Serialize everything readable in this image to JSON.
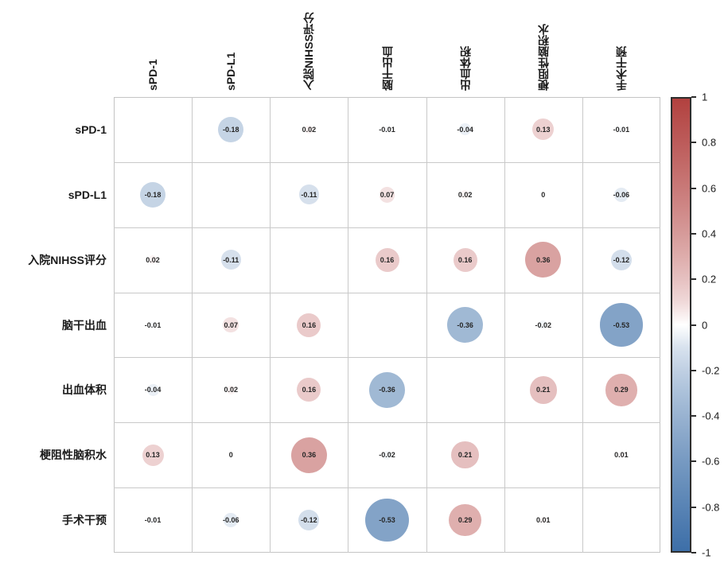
{
  "chart_data": {
    "type": "heatmap",
    "subtype": "correlation_matrix",
    "title": "",
    "variables": [
      "sPD-1",
      "sPD-L1",
      "入院NIHSS评分",
      "脑干出血",
      "出血体积",
      "梗阻性脑积水",
      "手术干预"
    ],
    "matrix": [
      [
        null,
        -0.18,
        0.02,
        -0.01,
        -0.04,
        0.13,
        -0.01
      ],
      [
        -0.18,
        null,
        -0.11,
        0.07,
        0.02,
        0,
        -0.06
      ],
      [
        0.02,
        -0.11,
        null,
        0.16,
        0.16,
        0.36,
        -0.12
      ],
      [
        -0.01,
        0.07,
        0.16,
        null,
        -0.36,
        -0.02,
        -0.53
      ],
      [
        -0.04,
        0.02,
        0.16,
        -0.36,
        null,
        0.21,
        0.29
      ],
      [
        0.13,
        0,
        0.36,
        -0.02,
        0.21,
        null,
        0.01
      ],
      [
        -0.01,
        -0.06,
        -0.12,
        -0.53,
        0.29,
        0.01,
        null
      ]
    ],
    "value_range": [
      -1,
      1
    ],
    "diagonal_blank": true,
    "glyph": "circle_sized_by_abs_value_colored_by_sign",
    "zero_display": "0",
    "legend_position": "right",
    "colorbar": {
      "tick_labels": [
        "1",
        "0.8",
        "0.6",
        "0.4",
        "0.2",
        "0",
        "-0.2",
        "-0.4",
        "-0.6",
        "-0.8",
        "-1"
      ],
      "tick_values": [
        1,
        0.8,
        0.6,
        0.4,
        0.2,
        0,
        -0.2,
        -0.4,
        -0.6,
        -0.8,
        -1
      ],
      "positive_color": "#b2413f",
      "negative_color": "#3d6fa8",
      "zero_color": "#ffffff"
    }
  }
}
